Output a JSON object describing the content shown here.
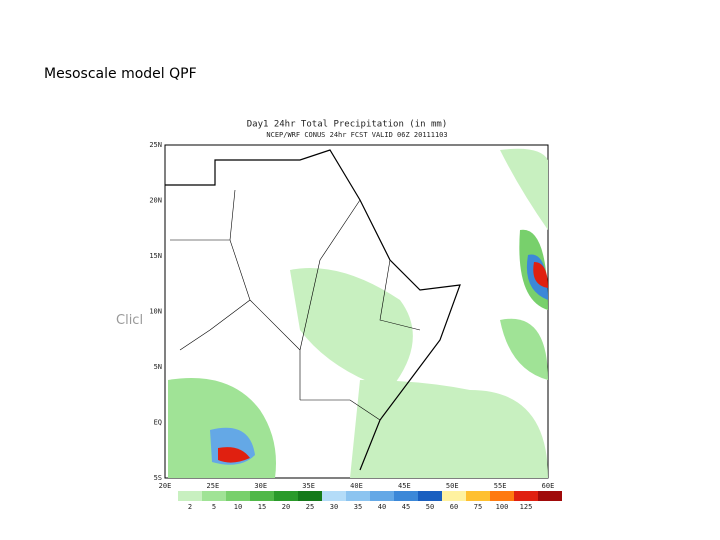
{
  "slide": {
    "title": "Mesoscale model QPF",
    "side_text": "Clicl"
  },
  "map": {
    "title": "Day1 24hr Total Precipitation (in mm)",
    "subtitle": "NCEP/WRF CONUS 24hr FCST VALID 06Z 20111103",
    "lat_labels": [
      "25N",
      "20N",
      "15N",
      "10N",
      "5N",
      "EQ",
      "5S"
    ],
    "lon_labels": [
      "20E",
      "25E",
      "30E",
      "35E",
      "40E",
      "45E",
      "50E",
      "55E",
      "60E"
    ],
    "colorbar": {
      "labels": [
        "2",
        "5",
        "10",
        "15",
        "20",
        "25",
        "30",
        "35",
        "40",
        "45",
        "50",
        "60",
        "75",
        "100",
        "125"
      ],
      "colors": [
        "#ffffff",
        "#c8f0c0",
        "#a0e396",
        "#78d06c",
        "#50b848",
        "#2a9a2a",
        "#157a1a",
        "#b4dcf8",
        "#8cc4f0",
        "#64a8e6",
        "#3c88d8",
        "#1a5fc0",
        "#fff2a0",
        "#ffc030",
        "#ff7a10",
        "#e02010",
        "#a00a0a"
      ]
    }
  }
}
